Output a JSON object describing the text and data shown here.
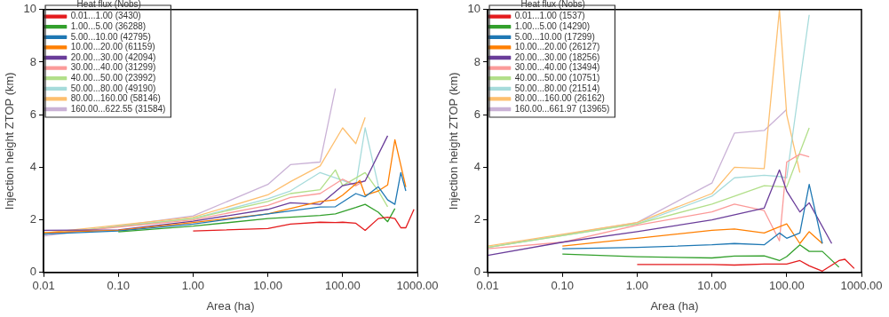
{
  "chart_data": [
    {
      "type": "line",
      "xlabel": "Area (ha)",
      "ylabel": "Injection height ZTOP (km)",
      "legend_title": "Heat flux (Nobs)",
      "legend": "top left",
      "log": "x",
      "grid": false,
      "marker": "none",
      "line_style": "solid",
      "xlim": [
        0.01,
        1000
      ],
      "xticks": [
        {
          "value": 0.01,
          "label": "0.01"
        },
        {
          "value": 0.1,
          "label": "0.10"
        },
        {
          "value": 1,
          "label": "1.00"
        },
        {
          "value": 10,
          "label": "10.00"
        },
        {
          "value": 100,
          "label": "100.00"
        },
        {
          "value": 1000,
          "label": "1000.00"
        }
      ],
      "ylim": [
        0,
        10
      ],
      "yticks": [
        0,
        2,
        4,
        6,
        8,
        10
      ],
      "series": [
        {
          "name": "0.01...1.00 (3430)",
          "color": "#e41a1c",
          "x": [
            1,
            10,
            20,
            50,
            80,
            100,
            150,
            200,
            300,
            400,
            500,
            600,
            700,
            900
          ],
          "values": [
            1.58,
            1.67,
            1.84,
            1.91,
            1.9,
            1.91,
            1.87,
            1.6,
            2.05,
            2.1,
            2.05,
            1.7,
            1.7,
            2.4
          ]
        },
        {
          "name": "1.00...5.00 (36288)",
          "color": "#33a02c",
          "x": [
            0.1,
            1,
            10,
            50,
            80,
            150,
            200,
            300,
            400,
            500
          ],
          "values": [
            1.54,
            1.76,
            2.05,
            2.17,
            2.23,
            2.47,
            2.59,
            2.29,
            1.93,
            2.43
          ]
        },
        {
          "name": "5.00...10.00 (42795)",
          "color": "#1f78b4",
          "x": [
            0.01,
            0.1,
            1,
            10,
            50,
            80,
            150,
            200,
            300,
            400,
            500,
            600,
            700
          ],
          "values": [
            1.46,
            1.58,
            1.84,
            2.23,
            2.49,
            2.5,
            3.0,
            2.88,
            3.26,
            2.76,
            2.59,
            3.8,
            3.1
          ]
        },
        {
          "name": "10.00...20.00 (61159)",
          "color": "#ff7f00",
          "x": [
            0.01,
            0.1,
            1,
            10,
            50,
            80,
            100,
            170,
            200,
            300,
            400,
            500,
            700
          ],
          "values": [
            1.52,
            1.6,
            1.9,
            2.23,
            2.7,
            2.76,
            2.94,
            3.5,
            2.94,
            3.1,
            3.33,
            5.05,
            3.25
          ]
        },
        {
          "name": "20.00...30.00 (42094)",
          "color": "#6a3d9a",
          "x": [
            0.01,
            0.1,
            1,
            10,
            20,
            50,
            100,
            200,
            400
          ],
          "values": [
            1.6,
            1.62,
            1.95,
            2.4,
            2.65,
            2.59,
            3.3,
            3.48,
            5.2
          ]
        },
        {
          "name": "30.00...40.00 (31299)",
          "color": "#fb9a99",
          "x": [
            0.01,
            1,
            10,
            20,
            50,
            100,
            150,
            200
          ],
          "values": [
            1.45,
            2.0,
            2.55,
            2.85,
            3.0,
            3.55,
            3.3,
            3.5
          ]
        },
        {
          "name": "40.00...50.00 (23992)",
          "color": "#b2df8a",
          "x": [
            0.01,
            1,
            10,
            20,
            50,
            80,
            100,
            200,
            300,
            400
          ],
          "values": [
            1.45,
            2.05,
            2.7,
            3.0,
            3.15,
            3.9,
            3.3,
            3.8,
            3.1,
            2.5
          ]
        },
        {
          "name": "50.00...80.00 (49190)",
          "color": "#a6dbdb",
          "x": [
            0.01,
            1,
            10,
            20,
            50,
            100,
            150,
            200,
            300
          ],
          "values": [
            1.45,
            2.05,
            2.8,
            3.1,
            3.8,
            3.5,
            3.3,
            5.5,
            3.3
          ]
        },
        {
          "name": "80.00...160.00 (58146)",
          "color": "#fdbf6f",
          "x": [
            0.01,
            1,
            10,
            20,
            50,
            100,
            150,
            200
          ],
          "values": [
            1.5,
            2.1,
            2.95,
            3.45,
            4.05,
            5.5,
            4.9,
            5.9
          ]
        },
        {
          "name": "160.00...622.55 (31584)",
          "color": "#cab2d6",
          "x": [
            0.01,
            1,
            10,
            20,
            50,
            80
          ],
          "values": [
            1.38,
            2.15,
            3.35,
            4.1,
            4.2,
            7.0
          ]
        }
      ]
    },
    {
      "type": "line",
      "xlabel": "Area (ha)",
      "ylabel": "Injection height ZTOP (km)",
      "legend_title": "Heat flux (Nobs)",
      "legend": "top left",
      "log": "x",
      "grid": false,
      "marker": "none",
      "line_style": "solid",
      "xlim": [
        0.01,
        1000
      ],
      "xticks": [
        {
          "value": 0.01,
          "label": "0.01"
        },
        {
          "value": 0.1,
          "label": "0.10"
        },
        {
          "value": 1,
          "label": "1.00"
        },
        {
          "value": 10,
          "label": "10.00"
        },
        {
          "value": 100,
          "label": "100.00"
        },
        {
          "value": 1000,
          "label": "1000.00"
        }
      ],
      "ylim": [
        0,
        10
      ],
      "yticks": [
        0,
        2,
        4,
        6,
        8,
        10
      ],
      "series": [
        {
          "name": "0.01...1.00 (1537)",
          "color": "#e41a1c",
          "x": [
            1,
            10,
            20,
            50,
            100,
            150,
            200,
            300,
            500,
            600,
            800
          ],
          "values": [
            0.3,
            0.3,
            0.28,
            0.32,
            0.32,
            0.45,
            0.25,
            0.05,
            0.45,
            0.5,
            0.15
          ]
        },
        {
          "name": "1.00...5.00 (14290)",
          "color": "#33a02c",
          "x": [
            0.1,
            1,
            10,
            20,
            50,
            80,
            100,
            150,
            200,
            300,
            500
          ],
          "values": [
            0.7,
            0.6,
            0.55,
            0.62,
            0.63,
            0.45,
            0.6,
            1.05,
            0.8,
            0.8,
            0.2
          ]
        },
        {
          "name": "5.00...10.00 (17299)",
          "color": "#1f78b4",
          "x": [
            0.1,
            1,
            10,
            20,
            50,
            80,
            100,
            150,
            200,
            300
          ],
          "values": [
            0.9,
            0.95,
            1.05,
            1.1,
            1.05,
            1.5,
            1.3,
            1.5,
            3.35,
            1.1
          ]
        },
        {
          "name": "10.00...20.00 (26127)",
          "color": "#ff7f00",
          "x": [
            0.1,
            1,
            10,
            20,
            50,
            100,
            150,
            200,
            300
          ],
          "values": [
            1.0,
            1.3,
            1.6,
            1.65,
            1.5,
            1.85,
            1.1,
            1.55,
            1.1
          ]
        },
        {
          "name": "20.00...30.00 (18256)",
          "color": "#6a3d9a",
          "x": [
            0.01,
            0.1,
            1,
            10,
            50,
            80,
            100,
            150,
            200,
            400
          ],
          "values": [
            0.65,
            1.15,
            1.55,
            2.0,
            2.45,
            3.9,
            3.1,
            2.3,
            2.65,
            1.1
          ]
        },
        {
          "name": "30.00...40.00 (13494)",
          "color": "#fb9a99",
          "x": [
            0.01,
            0.1,
            1,
            10,
            20,
            50,
            80,
            100,
            150,
            200
          ],
          "values": [
            0.9,
            1.15,
            1.8,
            2.3,
            2.6,
            2.35,
            1.2,
            4.2,
            4.5,
            4.4
          ]
        },
        {
          "name": "40.00...50.00 (10751)",
          "color": "#b2df8a",
          "x": [
            0.01,
            1,
            10,
            50,
            100,
            200
          ],
          "values": [
            0.95,
            1.85,
            2.6,
            3.3,
            3.25,
            5.5
          ]
        },
        {
          "name": "50.00...80.00 (21514)",
          "color": "#a6dbdb",
          "x": [
            0.01,
            1,
            10,
            20,
            50,
            80,
            100,
            200
          ],
          "values": [
            0.95,
            1.85,
            2.9,
            3.6,
            3.7,
            3.65,
            3.6,
            9.8
          ]
        },
        {
          "name": "80.00...160.00 (26162)",
          "color": "#fdbf6f",
          "x": [
            0.01,
            1,
            10,
            20,
            50,
            80,
            100,
            150
          ],
          "values": [
            1.0,
            1.9,
            3.0,
            4.0,
            3.95,
            10.0,
            6.0,
            3.8
          ]
        },
        {
          "name": "160.00...661.97 (13965)",
          "color": "#cab2d6",
          "x": [
            0.01,
            1,
            10,
            20,
            50,
            100
          ],
          "values": [
            0.95,
            1.9,
            3.4,
            5.3,
            5.4,
            6.2
          ]
        }
      ]
    }
  ]
}
